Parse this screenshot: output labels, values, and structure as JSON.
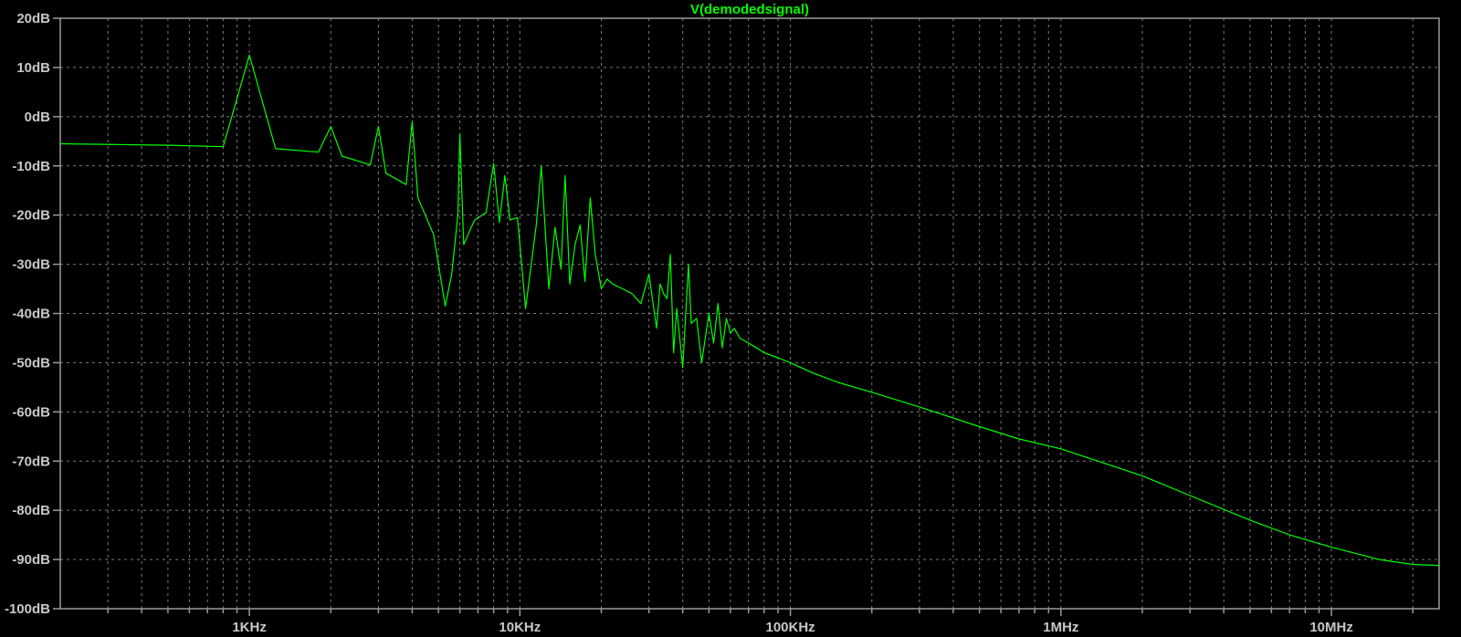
{
  "chart_data": {
    "type": "line",
    "title": "V(demodedsignal)",
    "xlabel": "",
    "ylabel": "",
    "x_scale": "log",
    "xlim": [
      200,
      25000000
    ],
    "ylim": [
      -100,
      20
    ],
    "grid": true,
    "colors": {
      "background": "#000000",
      "trace": "#00ff00",
      "axis_text": "#c8c8c8",
      "grid": "#7a7a7a"
    },
    "y_ticks": [
      {
        "value": 20,
        "label": "20dB"
      },
      {
        "value": 10,
        "label": "10dB"
      },
      {
        "value": 0,
        "label": "0dB"
      },
      {
        "value": -10,
        "label": "-10dB"
      },
      {
        "value": -20,
        "label": "-20dB"
      },
      {
        "value": -30,
        "label": "-30dB"
      },
      {
        "value": -40,
        "label": "-40dB"
      },
      {
        "value": -50,
        "label": "-50dB"
      },
      {
        "value": -60,
        "label": "-60dB"
      },
      {
        "value": -70,
        "label": "-70dB"
      },
      {
        "value": -80,
        "label": "-80dB"
      },
      {
        "value": -90,
        "label": "-90dB"
      },
      {
        "value": -100,
        "label": "-100dB"
      }
    ],
    "x_ticks": [
      {
        "value": 1000,
        "label": "1KHz"
      },
      {
        "value": 10000,
        "label": "10KHz"
      },
      {
        "value": 100000,
        "label": "100KHz"
      },
      {
        "value": 1000000,
        "label": "1MHz"
      },
      {
        "value": 10000000,
        "label": "10MHz"
      }
    ],
    "series": [
      {
        "name": "V(demodedsignal)",
        "x": [
          200,
          500,
          800,
          1000,
          1250,
          1800,
          2000,
          2200,
          2800,
          3000,
          3200,
          3800,
          4000,
          4200,
          4800,
          5300,
          5600,
          5900,
          6000,
          6200,
          6800,
          7500,
          8000,
          8400,
          8800,
          9200,
          9800,
          10500,
          11500,
          12000,
          12800,
          13500,
          14200,
          14700,
          15300,
          16000,
          16700,
          17400,
          18200,
          19000,
          20000,
          21000,
          22000,
          24000,
          26000,
          28000,
          30000,
          32000,
          33000,
          34000,
          35000,
          36000,
          37000,
          38000,
          40000,
          42000,
          43000,
          45000,
          47000,
          50000,
          52000,
          54000,
          56000,
          58000,
          60000,
          62000,
          65000,
          70000,
          75000,
          80000,
          90000,
          100000,
          120000,
          150000,
          200000,
          300000,
          500000,
          700000,
          1000000,
          2000000,
          3000000,
          5000000,
          7000000,
          10000000,
          15000000,
          20000000,
          25000000
        ],
        "y": [
          -5.5,
          -5.8,
          -6.1,
          12.5,
          -6.5,
          -7.2,
          -2,
          -8,
          -9.8,
          -2,
          -11.5,
          -13.8,
          -1,
          -16.5,
          -24,
          -38.5,
          -32,
          -20,
          -3.5,
          -26,
          -21,
          -19.5,
          -9.5,
          -21.5,
          -12,
          -21,
          -20.5,
          -39,
          -22,
          -10,
          -35,
          -22.5,
          -31,
          -12,
          -34,
          -26,
          -22,
          -33.5,
          -16.5,
          -28,
          -35,
          -33,
          -34,
          -35,
          -36,
          -38,
          -32,
          -43,
          -34,
          -36,
          -37,
          -28,
          -48,
          -39,
          -51,
          -30,
          -42,
          -41,
          -50,
          -40,
          -46,
          -38,
          -47,
          -41,
          -44,
          -43,
          -45,
          -46,
          -47,
          -48,
          -49,
          -50,
          -52,
          -54,
          -56,
          -59,
          -63,
          -65.5,
          -67.5,
          -73,
          -77,
          -82,
          -85,
          -87.5,
          -90,
          -91,
          -91.2
        ]
      }
    ]
  }
}
